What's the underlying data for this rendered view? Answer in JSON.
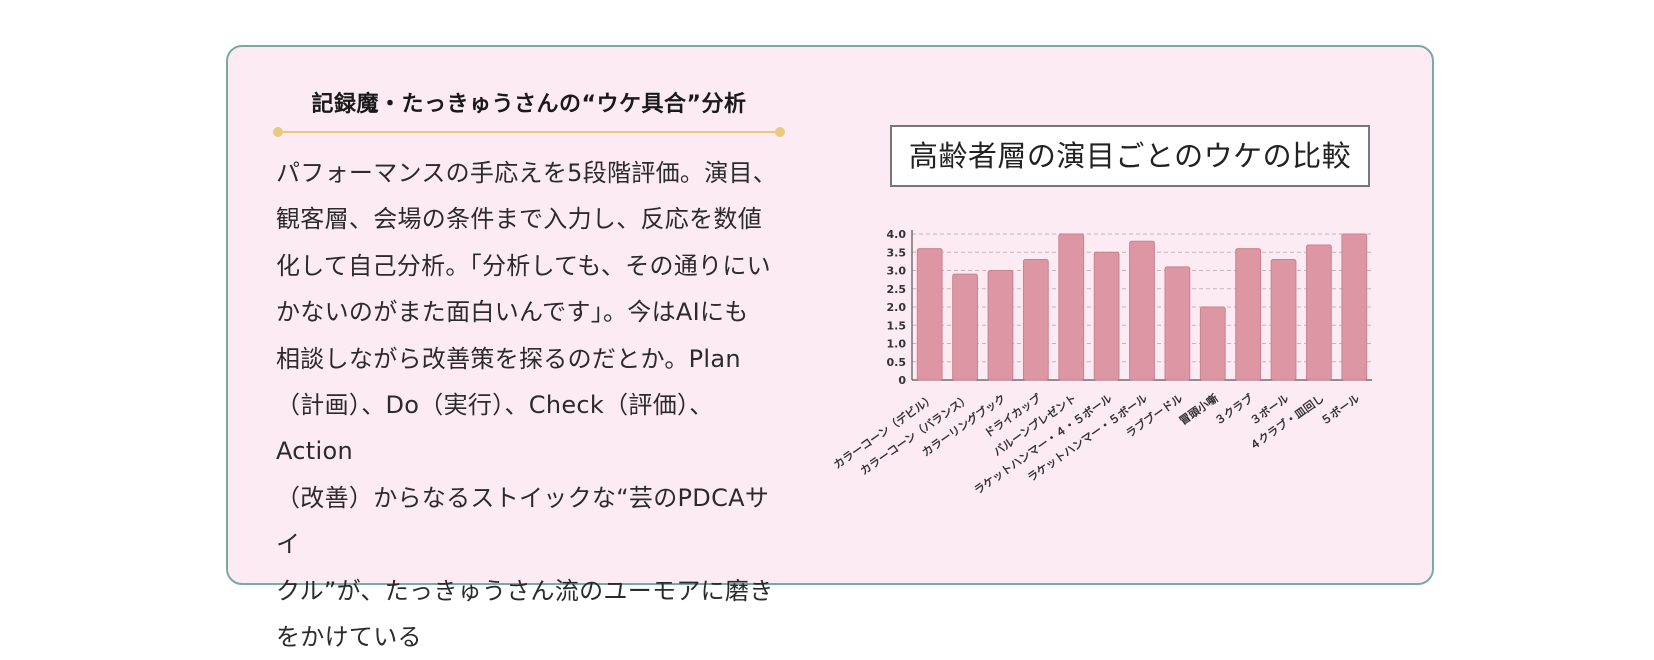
{
  "article": {
    "heading": "記録魔・たっきゅうさんの“ウケ具合”分析",
    "body": "パフォーマンスの手応えを5段階評価。演目、\n観客層、会場の条件まで入力し、反応を数値\n化して自己分析。「分析しても、その通りにい\nかないのがまた面白いんです」。今はAIにも\n相談しながら改善策を探るのだとか。Plan\n（計画）、Do（実行）、Check（評価）、Action\n（改善）からなるストイックな“芸のPDCAサイ\nクル”が、たっきゅうさん流のユーモアに磨き\nをかけている"
  },
  "colors": {
    "card_background": "#fcebf3",
    "card_border": "#77aaa5",
    "accent_rule": "#e9c97f",
    "bar_fill": "#dc96a4"
  },
  "chart_data": {
    "type": "bar",
    "title": "高齢者層の演目ごとのウケの比較",
    "categories": [
      "カラーコーン（デビル）",
      "カラーコーン（バランス）",
      "カラーリングブック",
      "ドライカップ",
      "バルーンプレゼント",
      "ラケットハンマー・４・５ボール",
      "ラケットハンマー・５ボール",
      "ラブブードル",
      "冒頭小噺",
      "３クラブ",
      "３ボール",
      "４クラブ・皿回し",
      "５ボール"
    ],
    "values": [
      3.6,
      2.9,
      3.0,
      3.3,
      4.0,
      3.5,
      3.8,
      3.1,
      2.0,
      3.6,
      3.3,
      3.7,
      4.0
    ],
    "yticks": [
      "0",
      "0.5",
      "1.0",
      "1.5",
      "2.0",
      "2.5",
      "3.0",
      "3.5",
      "4.0"
    ],
    "ylim": [
      0,
      4
    ],
    "grid": true,
    "legend": "none"
  }
}
